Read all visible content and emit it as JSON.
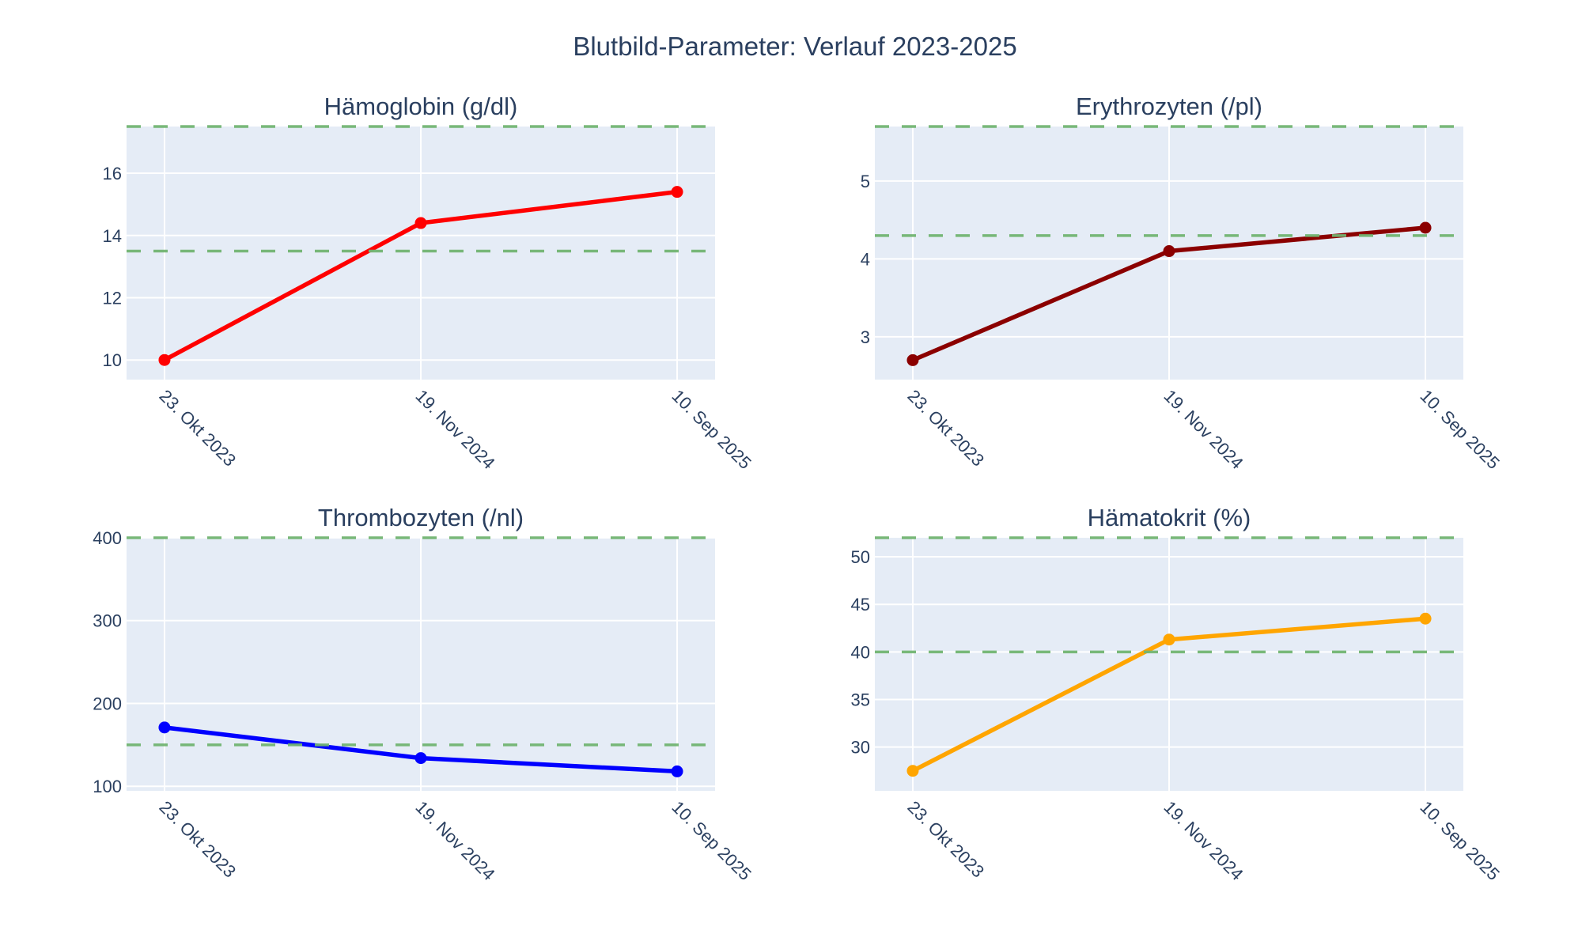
{
  "title": "Blutbild-Parameter: Verlauf 2023-2025",
  "colors": {
    "plot_bg": "#e5ecf6",
    "grid": "#ffffff",
    "text": "#2a3f5f",
    "reference_line": "#72b572"
  },
  "chart_data": [
    {
      "type": "line",
      "title": "Hämoglobin (g/dl)",
      "categories": [
        "23. Okt 2023",
        "19. Nov 2024",
        "10. Sep 2025"
      ],
      "values": [
        10.0,
        14.4,
        15.4
      ],
      "color": "#ff0000",
      "reference_lines": [
        13.5,
        17.5
      ],
      "ylim": [
        9.37,
        17.5
      ],
      "yticks": [
        10,
        12,
        14,
        16
      ],
      "grid": true
    },
    {
      "type": "line",
      "title": "Erythrozyten (/pl)",
      "categories": [
        "23. Okt 2023",
        "19. Nov 2024",
        "10. Sep 2025"
      ],
      "values": [
        2.7,
        4.1,
        4.4
      ],
      "color": "#8b0000",
      "reference_lines": [
        4.3,
        5.7
      ],
      "ylim": [
        2.45,
        5.7
      ],
      "yticks": [
        3,
        4,
        5
      ],
      "grid": true
    },
    {
      "type": "line",
      "title": "Thrombozyten (/nl)",
      "categories": [
        "23. Okt 2023",
        "19. Nov 2024",
        "10. Sep 2025"
      ],
      "values": [
        171,
        134,
        118
      ],
      "color": "#0000ff",
      "reference_lines": [
        150,
        400
      ],
      "ylim": [
        94.5,
        400
      ],
      "yticks": [
        100,
        200,
        300,
        400
      ],
      "grid": true
    },
    {
      "type": "line",
      "title": "Hämatokrit (%)",
      "categories": [
        "23. Okt 2023",
        "19. Nov 2024",
        "10. Sep 2025"
      ],
      "values": [
        27.5,
        41.3,
        43.5
      ],
      "color": "#ffa500",
      "reference_lines": [
        40,
        52
      ],
      "ylim": [
        25.4,
        52
      ],
      "yticks": [
        30,
        35,
        40,
        45,
        50
      ],
      "grid": true
    }
  ]
}
